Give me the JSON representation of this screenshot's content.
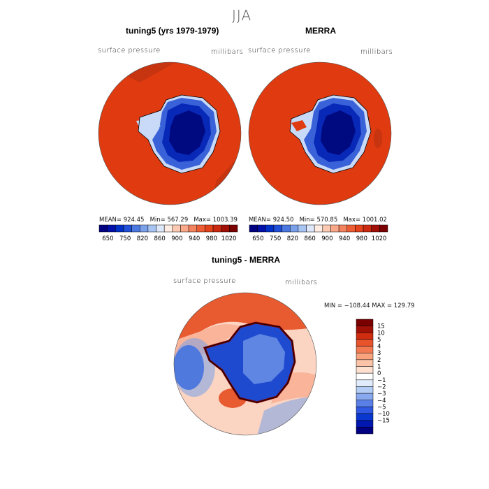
{
  "figure": {
    "season_title": "JJA",
    "top_left": {
      "title": "tuning5 (yrs 1979-1979)",
      "var_label": "surface pressure",
      "units_label": "millibars",
      "mean_label": "MEAN=",
      "mean": "924.45",
      "min_label": "Min=",
      "min": "567.29",
      "max_label": "Max=",
      "max": "1003.39"
    },
    "top_right": {
      "title": "MERRA",
      "var_label": "surface pressure",
      "units_label": "millibars",
      "mean_label": "MEAN=",
      "mean": "924.50",
      "min_label": "Min=",
      "min": "570.85",
      "max_label": "Max=",
      "max": "1001.02"
    },
    "bottom": {
      "title": "tuning5 - MERRA",
      "var_label": "surface pressure",
      "units_label": "millibars",
      "minmax_text": "MIN = −108.44  MAX = 129.79"
    },
    "abs_colorbar": {
      "colors": [
        "#000080",
        "#0010a8",
        "#0030c8",
        "#2050d8",
        "#4a78e0",
        "#7aa0ea",
        "#a8c4f2",
        "#dde8fb",
        "#ffece2",
        "#fccab2",
        "#f9a88a",
        "#f3835f",
        "#ec5d35",
        "#e3421a",
        "#cc2a10",
        "#a01008",
        "#7a0000"
      ],
      "tick_labels": [
        "650",
        "750",
        "820",
        "860",
        "900",
        "940",
        "980",
        "1020"
      ]
    },
    "diff_colorbar": {
      "colors": [
        "#000080",
        "#0018b0",
        "#0838d0",
        "#3058e0",
        "#5a80e8",
        "#88a8f0",
        "#b4cdf5",
        "#e0ebfb",
        "#ffffff",
        "#fde0d0",
        "#fbc4a8",
        "#f8a27e",
        "#f27a52",
        "#e8532c",
        "#d02c10",
        "#a01006",
        "#7a0000"
      ],
      "tick_labels": [
        "15",
        "10",
        "5",
        "4",
        "3",
        "2",
        "1",
        "0",
        "−1",
        "−2",
        "−3",
        "−4",
        "−5",
        "−10",
        "−15"
      ]
    },
    "map_colors": {
      "ocean_high": "#e03a10",
      "ocean_edge": "#c63410",
      "plateau_dark": "#000a80",
      "plateau_mid": "#0828b8",
      "plateau_light": "#3a62d8",
      "coast_light": "#c8daf8",
      "diff_red": "#e85a30",
      "diff_pink": "#f9b49a",
      "diff_lightpink": "#fbd4c2",
      "diff_blue": "#7aa0ea",
      "diff_dblue": "#1e4ad0"
    }
  }
}
